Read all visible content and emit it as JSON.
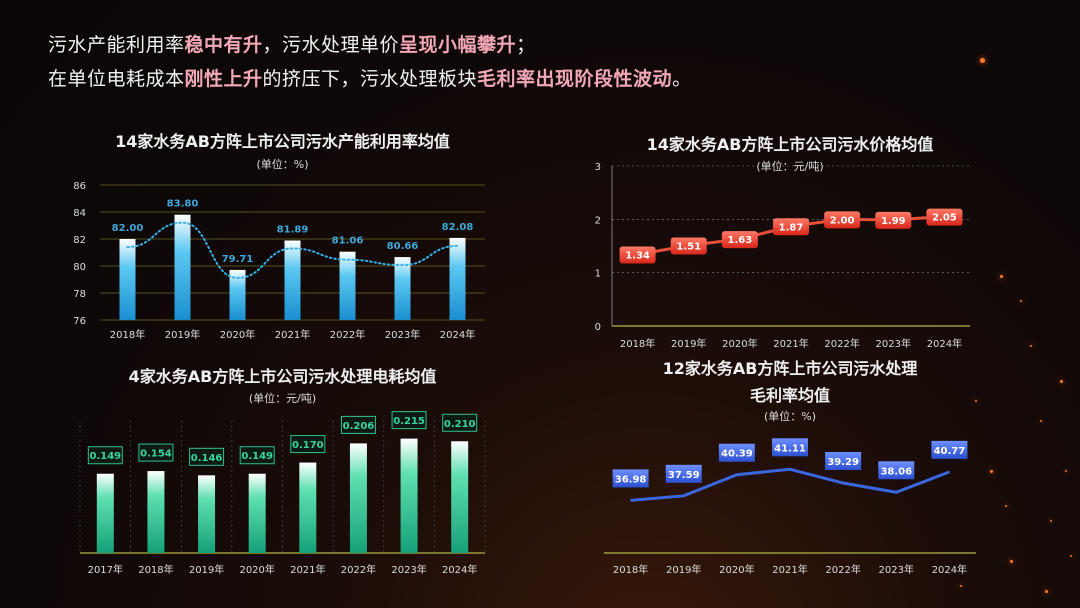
{
  "headline": {
    "line1": [
      {
        "text": "污水产能利用率",
        "hl": false
      },
      {
        "text": "稳中有升",
        "hl": true
      },
      {
        "text": "，污水处理单价",
        "hl": false
      },
      {
        "text": "呈现小幅攀升",
        "hl": true
      },
      {
        "text": "；",
        "hl": false
      }
    ],
    "line2": [
      {
        "text": "在单位电耗成本",
        "hl": false
      },
      {
        "text": "刚性上升",
        "hl": true
      },
      {
        "text": "的挤压下，污水处理板块",
        "hl": false
      },
      {
        "text": "毛利率出现阶段性波动",
        "hl": true
      },
      {
        "text": "。",
        "hl": false
      }
    ]
  },
  "colors": {
    "accent_hl": "#f3a8b6",
    "bar_blue": "#2aa7e0",
    "bar_green": "#1fbf8f",
    "line_red": "#e8503a",
    "line_blue": "#3a66e0"
  },
  "chart_data": [
    {
      "id": "capacity",
      "type": "bar",
      "title": "14家水务AB方阵上市公司污水产能利用率均值",
      "unit": "(单位：%)",
      "categories": [
        "2018年",
        "2019年",
        "2020年",
        "2021年",
        "2022年",
        "2023年",
        "2024年"
      ],
      "values": [
        82.0,
        83.8,
        79.71,
        81.89,
        81.06,
        80.66,
        82.08
      ],
      "labels": [
        "82.00",
        "83.80",
        "79.71",
        "81.89",
        "81.06",
        "80.66",
        "82.08"
      ],
      "trendline": "dotted",
      "ylim": [
        76,
        86
      ],
      "yticks": [
        "76",
        "78",
        "80",
        "82",
        "84",
        "86"
      ]
    },
    {
      "id": "price",
      "type": "line",
      "title": "14家水务AB方阵上市公司污水价格均值",
      "unit": "(单位：元/吨)",
      "categories": [
        "2018年",
        "2019年",
        "2020年",
        "2021年",
        "2022年",
        "2023年",
        "2024年"
      ],
      "values": [
        1.34,
        1.51,
        1.63,
        1.87,
        2.0,
        1.99,
        2.05
      ],
      "labels": [
        "1.34",
        "1.51",
        "1.63",
        "1.87",
        "2.00",
        "1.99",
        "2.05"
      ],
      "ylim": [
        0,
        3
      ],
      "yticks": [
        "0",
        "1",
        "2",
        "3"
      ]
    },
    {
      "id": "power",
      "type": "bar",
      "title": "4家水务AB方阵上市公司污水处理电耗均值",
      "unit": "(单位：元/吨)",
      "categories": [
        "2017年",
        "2018年",
        "2019年",
        "2020年",
        "2021年",
        "2022年",
        "2023年",
        "2024年"
      ],
      "values": [
        0.149,
        0.154,
        0.146,
        0.149,
        0.17,
        0.206,
        0.215,
        0.21
      ],
      "labels": [
        "0.149",
        "0.154",
        "0.146",
        "0.149",
        "0.170",
        "0.206",
        "0.215",
        "0.210"
      ],
      "ylim": [
        0,
        0.25
      ]
    },
    {
      "id": "margin",
      "type": "line",
      "title_lines": [
        "12家水务AB方阵上市公司污水处理",
        "毛利率均值"
      ],
      "unit": "(单位：%)",
      "categories": [
        "2018年",
        "2019年",
        "2020年",
        "2021年",
        "2022年",
        "2023年",
        "2024年"
      ],
      "values": [
        36.98,
        37.59,
        40.39,
        41.11,
        39.29,
        38.06,
        40.77
      ],
      "labels": [
        "36.98",
        "37.59",
        "40.39",
        "41.11",
        "39.29",
        "38.06",
        "40.77"
      ],
      "ylim": [
        30,
        45
      ]
    }
  ]
}
